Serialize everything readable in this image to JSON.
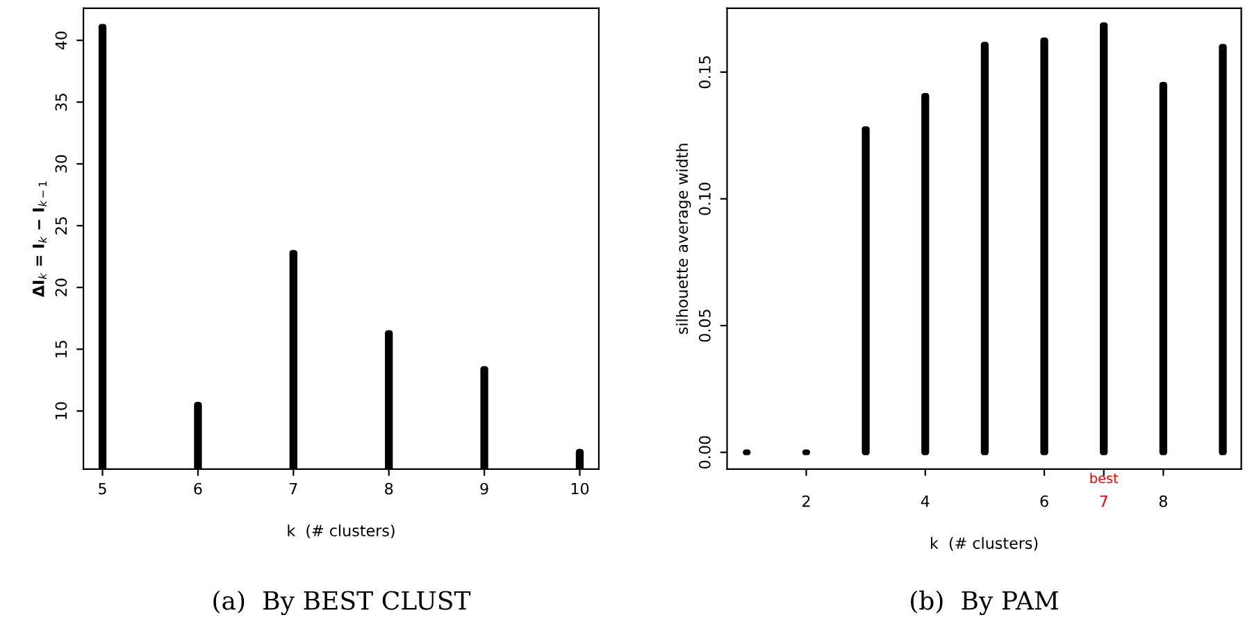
{
  "chart_data": [
    {
      "type": "bar",
      "title": "(a)  By BEST CLUST",
      "xlabel": "k  (# clusters)",
      "ylabel": "ΔI$_{k}$ = I$_{k}$ − I$_{k−1}$",
      "x": [
        5,
        6,
        7,
        8,
        9,
        10
      ],
      "values": [
        41.1,
        10.5,
        22.8,
        16.3,
        13.4,
        6.7
      ],
      "color": "#000000",
      "xlim": [
        4.8,
        10.2
      ],
      "xticks": [
        5,
        6,
        7,
        8,
        9,
        10
      ],
      "ylim": [
        5.3,
        42.6
      ],
      "yticks": [
        10,
        15,
        20,
        25,
        30,
        35,
        40
      ],
      "grid": false
    },
    {
      "type": "bar",
      "title": "(b)  By PAM",
      "xlabel": "k  (# clusters)",
      "ylabel": "silhouette average width",
      "x": [
        1,
        2,
        3,
        4,
        5,
        6,
        7,
        8,
        9
      ],
      "values": [
        0,
        0,
        0.1275,
        0.1406,
        0.1608,
        0.1625,
        0.1685,
        0.145,
        0.16
      ],
      "color": "#000000",
      "xlim": [
        0.67,
        9.31
      ],
      "xticks": [
        2,
        4,
        6,
        {
          "value": 7,
          "label": "7"
        },
        8
      ],
      "ylim": [
        -0.0066,
        0.1752
      ],
      "yticks": [
        {
          "value": 0,
          "label": "0.00"
        },
        {
          "value": 0.05,
          "label": "0.05"
        },
        {
          "value": 0.1,
          "label": "0.10"
        },
        {
          "value": 0.15,
          "label": "0.15"
        }
      ],
      "grid": false,
      "annotations": [
        {
          "text": "best",
          "x": 7,
          "y": 0
        }
      ]
    }
  ]
}
